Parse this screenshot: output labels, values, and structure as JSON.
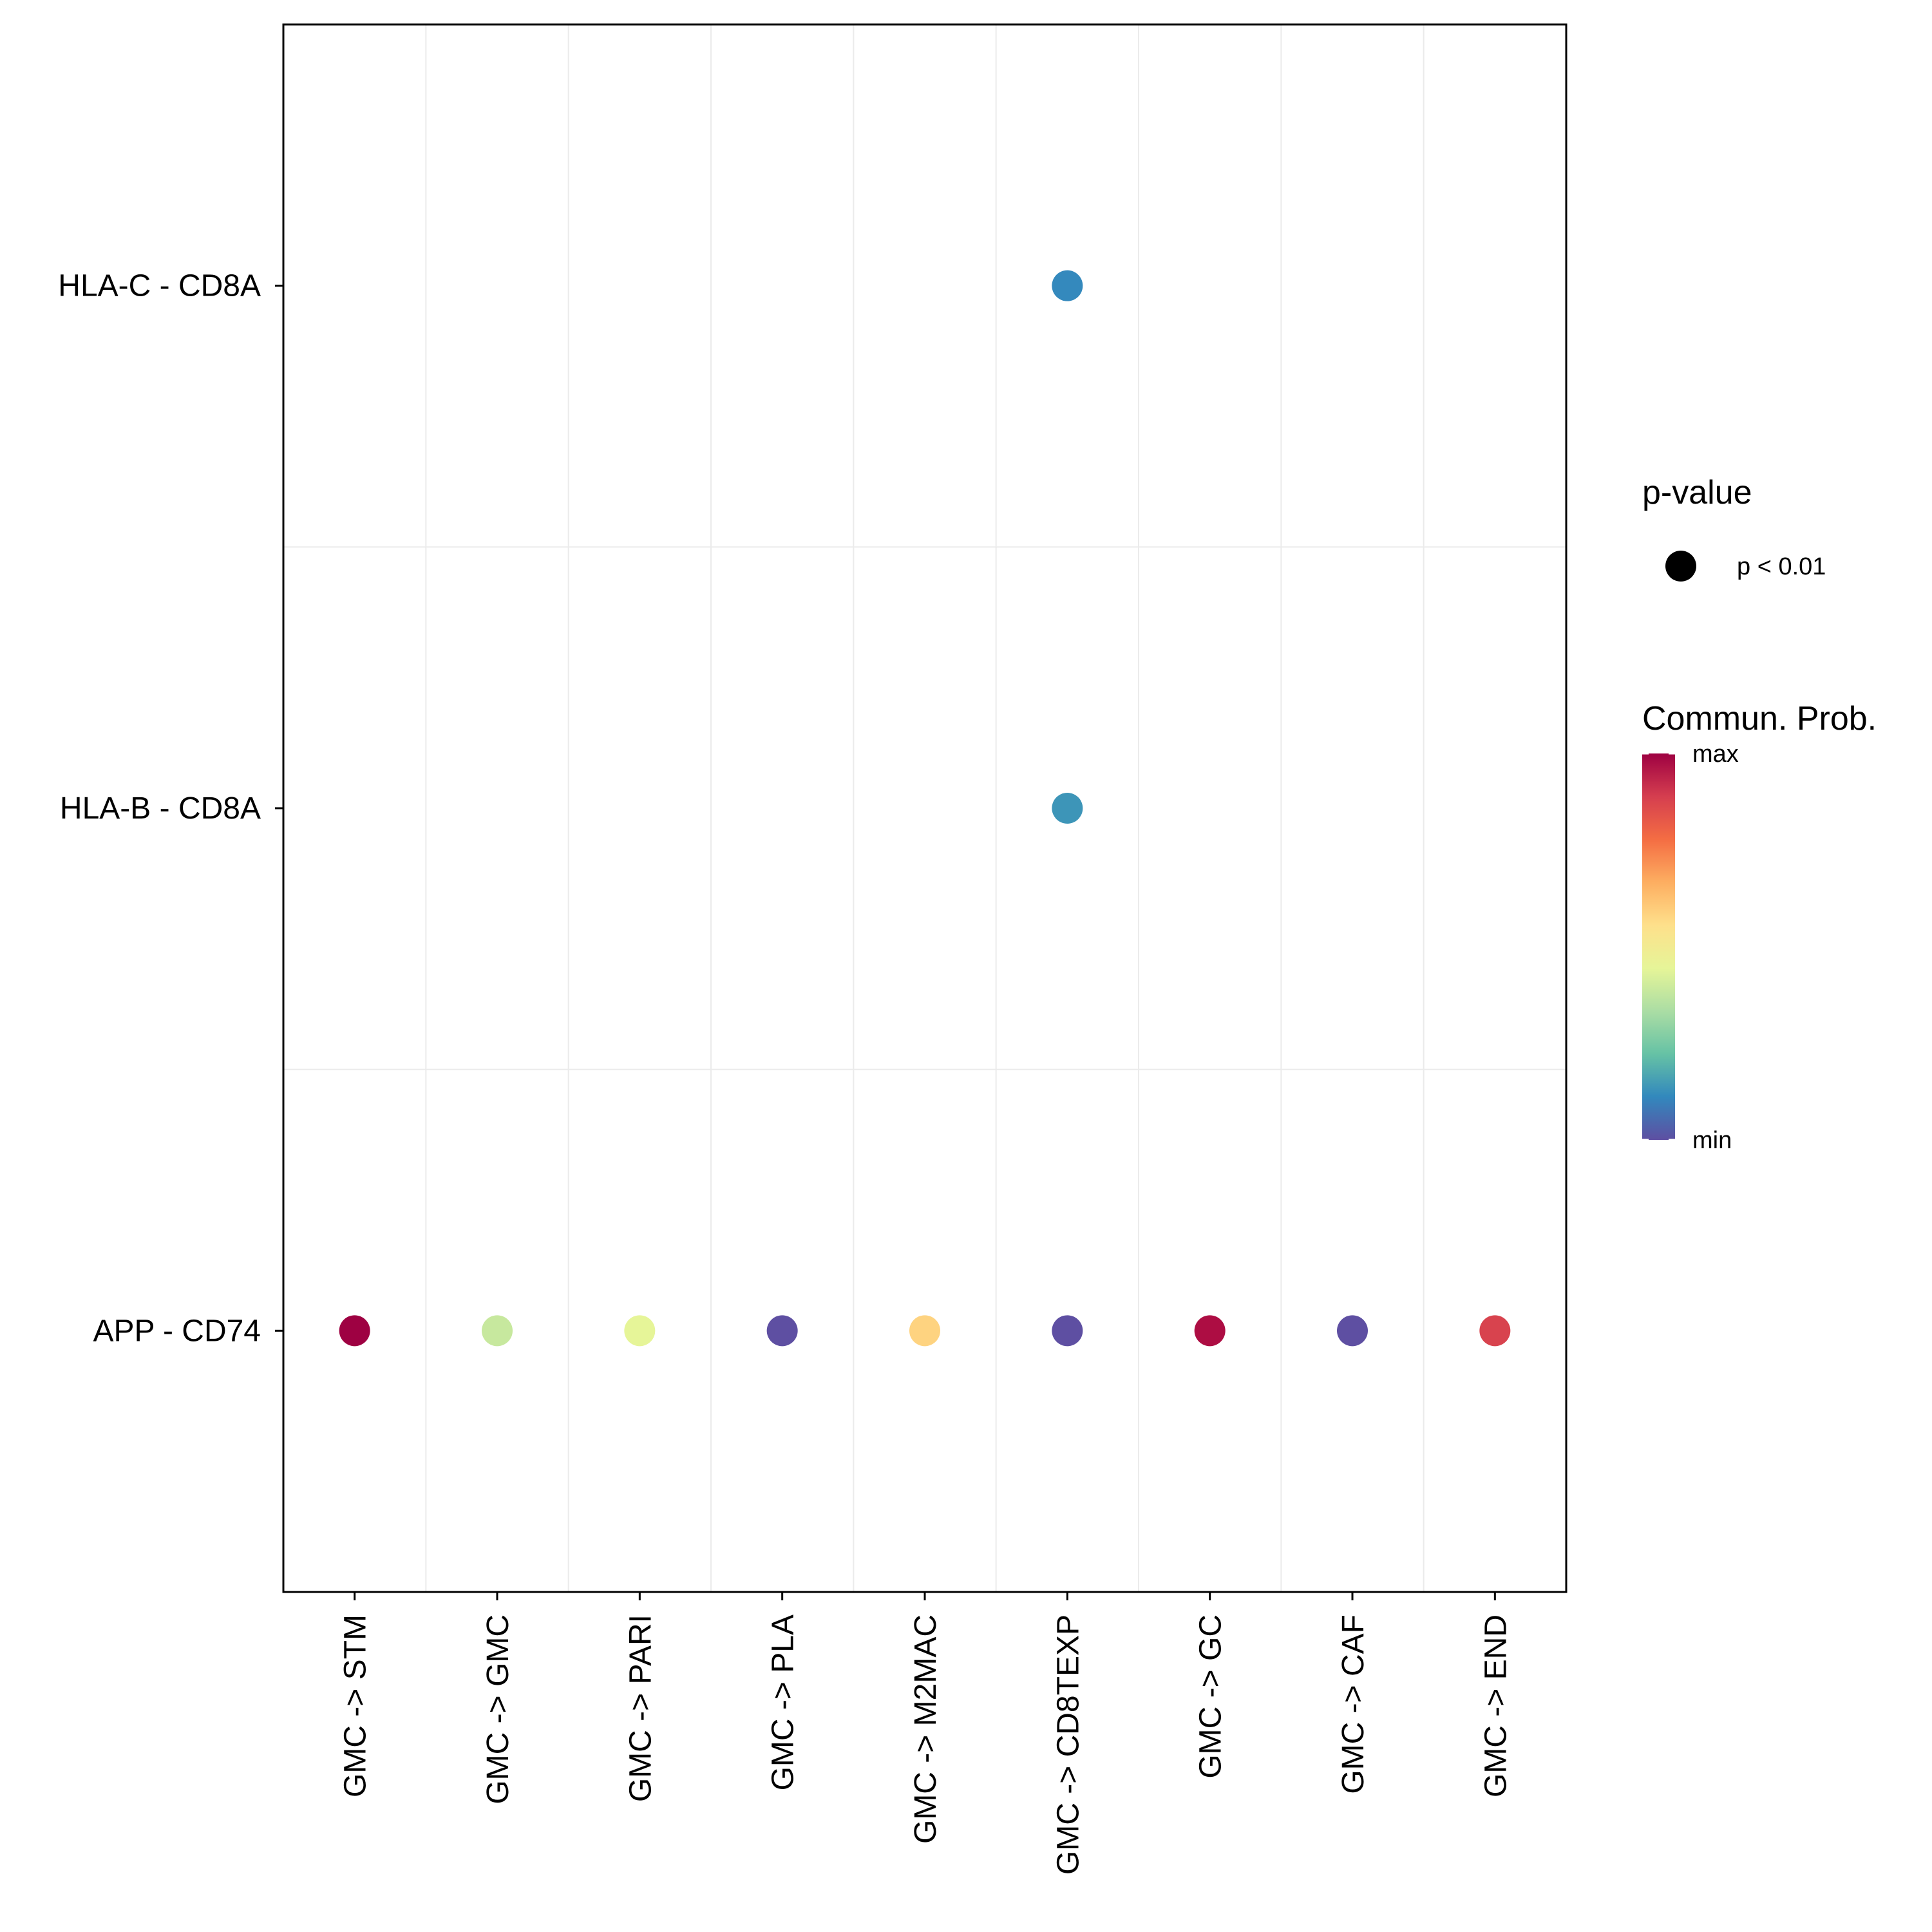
{
  "chart_data": {
    "type": "scatter",
    "x_categories": [
      "GMC -> STM",
      "GMC -> GMC",
      "GMC -> PARI",
      "GMC -> PLA",
      "GMC -> M2MAC",
      "GMC -> CD8TEXP",
      "GMC -> GC",
      "GMC -> CAF",
      "GMC -> END"
    ],
    "y_categories": [
      "APP - CD74",
      "HLA-B - CD8A",
      "HLA-C - CD8A"
    ],
    "points": [
      {
        "x": "GMC -> STM",
        "y": "APP - CD74",
        "prob": 1.0,
        "color": "#9E0142"
      },
      {
        "x": "GMC -> GMC",
        "y": "APP - CD74",
        "prob": 0.42,
        "color": "#C7E89E"
      },
      {
        "x": "GMC -> PARI",
        "y": "APP - CD74",
        "prob": 0.48,
        "color": "#E6F598"
      },
      {
        "x": "GMC -> PLA",
        "y": "APP - CD74",
        "prob": 0.0,
        "color": "#5E4FA2"
      },
      {
        "x": "GMC -> M2MAC",
        "y": "APP - CD74",
        "prob": 0.65,
        "color": "#FED380"
      },
      {
        "x": "GMC -> CD8TEXP",
        "y": "APP - CD74",
        "prob": 0.0,
        "color": "#5E4FA2"
      },
      {
        "x": "GMC -> GC",
        "y": "APP - CD74",
        "prob": 0.97,
        "color": "#AD0D43"
      },
      {
        "x": "GMC -> CAF",
        "y": "APP - CD74",
        "prob": 0.0,
        "color": "#5E4FA2"
      },
      {
        "x": "GMC -> END",
        "y": "APP - CD74",
        "prob": 0.88,
        "color": "#D8434E"
      },
      {
        "x": "GMC -> CD8TEXP",
        "y": "HLA-B - CD8A",
        "prob": 0.15,
        "color": "#3D95B8"
      },
      {
        "x": "GMC -> CD8TEXP",
        "y": "HLA-C - CD8A",
        "prob": 0.12,
        "color": "#3489BD"
      }
    ],
    "legend": {
      "pvalue_title": "p-value",
      "pvalue_label": "p < 0.01",
      "pvalue_marker_color": "#000000",
      "colorbar_title": "Commun. Prob.",
      "colorbar_max_label": "max",
      "colorbar_min_label": "min",
      "colorbar_colors": [
        "#5E4FA2",
        "#3288BD",
        "#66C2A5",
        "#ABDDA4",
        "#E6F598",
        "#FEE08B",
        "#FDAE61",
        "#F46D43",
        "#D53E4F",
        "#9E0142"
      ]
    },
    "grid": true,
    "legend_position": "right"
  }
}
